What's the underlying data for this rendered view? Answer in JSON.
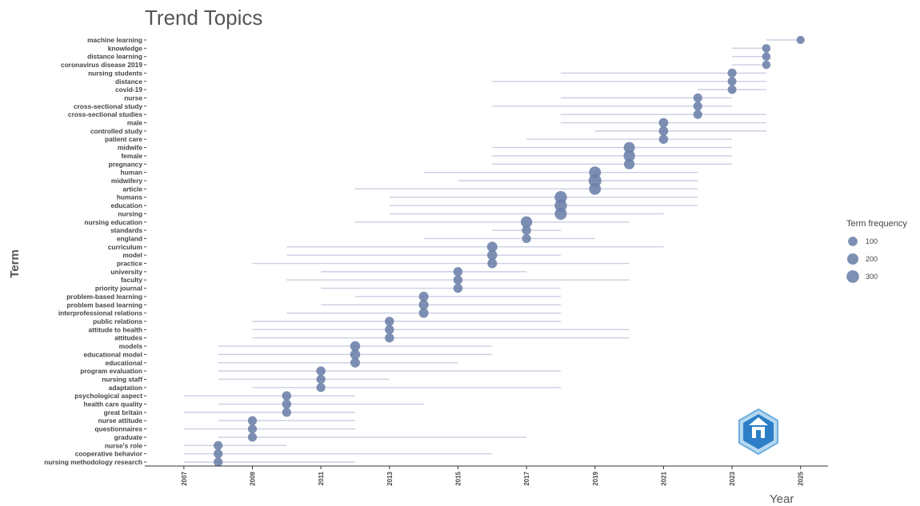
{
  "chart_data": {
    "type": "scatter",
    "title": "Trend Topics",
    "xlabel": "Year",
    "ylabel": "Term",
    "x_ticks": [
      2007,
      2009,
      2011,
      2013,
      2015,
      2017,
      2019,
      2021,
      2023,
      2025
    ],
    "xlim": [
      2006,
      2025.8
    ],
    "grid": false,
    "legend": {
      "title": "Term frequency",
      "position": "right",
      "entries": [
        {
          "label": "100",
          "value": 100
        },
        {
          "label": "200",
          "value": 200
        },
        {
          "label": "300",
          "value": 300
        }
      ]
    },
    "colors": {
      "point": "#6b7fa8",
      "range_line": "#c9cfe0",
      "axis": "#333333"
    },
    "terms": [
      {
        "term": "machine learning",
        "q1": 2024,
        "median": 2025,
        "q3": 2025,
        "freq": 50
      },
      {
        "term": "knowledge",
        "q1": 2023,
        "median": 2024,
        "q3": 2024,
        "freq": 60
      },
      {
        "term": "distance learning",
        "q1": 2023,
        "median": 2024,
        "q3": 2024,
        "freq": 60
      },
      {
        "term": "coronavirus disease 2019",
        "q1": 2023,
        "median": 2024,
        "q3": 2024,
        "freq": 60
      },
      {
        "term": "nursing students",
        "q1": 2018,
        "median": 2023,
        "q3": 2024,
        "freq": 80
      },
      {
        "term": "distance",
        "q1": 2016,
        "median": 2023,
        "q3": 2024,
        "freq": 70
      },
      {
        "term": "covid-19",
        "q1": 2022,
        "median": 2023,
        "q3": 2024,
        "freq": 70
      },
      {
        "term": "nurse",
        "q1": 2018,
        "median": 2022,
        "q3": 2023,
        "freq": 80
      },
      {
        "term": "cross-sectional study",
        "q1": 2016,
        "median": 2022,
        "q3": 2023,
        "freq": 80
      },
      {
        "term": "cross-sectional studies",
        "q1": 2018,
        "median": 2022,
        "q3": 2024,
        "freq": 80
      },
      {
        "term": "male",
        "q1": 2018,
        "median": 2021,
        "q3": 2024,
        "freq": 100
      },
      {
        "term": "controlled study",
        "q1": 2019,
        "median": 2021,
        "q3": 2024,
        "freq": 100
      },
      {
        "term": "patient care",
        "q1": 2017,
        "median": 2021,
        "q3": 2023,
        "freq": 90
      },
      {
        "term": "midwife",
        "q1": 2016,
        "median": 2020,
        "q3": 2023,
        "freq": 200
      },
      {
        "term": "female",
        "q1": 2016,
        "median": 2020,
        "q3": 2023,
        "freq": 220
      },
      {
        "term": "pregnancy",
        "q1": 2016,
        "median": 2020,
        "q3": 2023,
        "freq": 160
      },
      {
        "term": "human",
        "q1": 2014,
        "median": 2019,
        "q3": 2022,
        "freq": 250
      },
      {
        "term": "midwifery",
        "q1": 2015,
        "median": 2019,
        "q3": 2022,
        "freq": 320
      },
      {
        "term": "article",
        "q1": 2012,
        "median": 2019,
        "q3": 2022,
        "freq": 240
      },
      {
        "term": "humans",
        "q1": 2013,
        "median": 2018,
        "q3": 2022,
        "freq": 280
      },
      {
        "term": "education",
        "q1": 2013,
        "median": 2018,
        "q3": 2022,
        "freq": 280
      },
      {
        "term": "nursing",
        "q1": 2013,
        "median": 2018,
        "q3": 2021,
        "freq": 260
      },
      {
        "term": "nursing education",
        "q1": 2012,
        "median": 2017,
        "q3": 2020,
        "freq": 220
      },
      {
        "term": "standards",
        "q1": 2016,
        "median": 2017,
        "q3": 2018,
        "freq": 90
      },
      {
        "term": "england",
        "q1": 2014,
        "median": 2017,
        "q3": 2019,
        "freq": 80
      },
      {
        "term": "curriculum",
        "q1": 2010,
        "median": 2016,
        "q3": 2021,
        "freq": 150
      },
      {
        "term": "model",
        "q1": 2010,
        "median": 2016,
        "q3": 2018,
        "freq": 130
      },
      {
        "term": "practice",
        "q1": 2009,
        "median": 2016,
        "q3": 2020,
        "freq": 110
      },
      {
        "term": "university",
        "q1": 2011,
        "median": 2015,
        "q3": 2017,
        "freq": 90
      },
      {
        "term": "faculty",
        "q1": 2010,
        "median": 2015,
        "q3": 2020,
        "freq": 90
      },
      {
        "term": "priority journal",
        "q1": 2011,
        "median": 2015,
        "q3": 2018,
        "freq": 90
      },
      {
        "term": "problem-based learning",
        "q1": 2012,
        "median": 2014,
        "q3": 2018,
        "freq": 110
      },
      {
        "term": "problem based learning",
        "q1": 2011,
        "median": 2014,
        "q3": 2018,
        "freq": 120
      },
      {
        "term": "interprofessional relations",
        "q1": 2010,
        "median": 2014,
        "q3": 2018,
        "freq": 110
      },
      {
        "term": "public relations",
        "q1": 2009,
        "median": 2013,
        "q3": 2018,
        "freq": 90
      },
      {
        "term": "attitude to health",
        "q1": 2009,
        "median": 2013,
        "q3": 2020,
        "freq": 90
      },
      {
        "term": "attitudes",
        "q1": 2009,
        "median": 2013,
        "q3": 2020,
        "freq": 90
      },
      {
        "term": "models",
        "q1": 2008,
        "median": 2012,
        "q3": 2016,
        "freq": 130
      },
      {
        "term": "educational model",
        "q1": 2008,
        "median": 2012,
        "q3": 2016,
        "freq": 130
      },
      {
        "term": "educational",
        "q1": 2008,
        "median": 2012,
        "q3": 2015,
        "freq": 110
      },
      {
        "term": "program evaluation",
        "q1": 2008,
        "median": 2011,
        "q3": 2018,
        "freq": 90
      },
      {
        "term": "nursing staff",
        "q1": 2008,
        "median": 2011,
        "q3": 2013,
        "freq": 80
      },
      {
        "term": "adaptation",
        "q1": 2009,
        "median": 2011,
        "q3": 2018,
        "freq": 80
      },
      {
        "term": "psychological aspect",
        "q1": 2007,
        "median": 2010,
        "q3": 2012,
        "freq": 90
      },
      {
        "term": "health care quality",
        "q1": 2008,
        "median": 2010,
        "q3": 2014,
        "freq": 90
      },
      {
        "term": "great britain",
        "q1": 2007,
        "median": 2010,
        "q3": 2012,
        "freq": 80
      },
      {
        "term": "nurse attitude",
        "q1": 2008,
        "median": 2009,
        "q3": 2012,
        "freq": 80
      },
      {
        "term": "questionnaires",
        "q1": 2007,
        "median": 2009,
        "q3": 2012,
        "freq": 80
      },
      {
        "term": "graduate",
        "q1": 2008,
        "median": 2009,
        "q3": 2017,
        "freq": 80
      },
      {
        "term": "nurse's role",
        "q1": 2007,
        "median": 2008,
        "q3": 2010,
        "freq": 80
      },
      {
        "term": "cooperative behavior",
        "q1": 2007,
        "median": 2008,
        "q3": 2016,
        "freq": 80
      },
      {
        "term": "nursing methodology research",
        "q1": 2007,
        "median": 2008,
        "q3": 2012,
        "freq": 80
      }
    ]
  }
}
